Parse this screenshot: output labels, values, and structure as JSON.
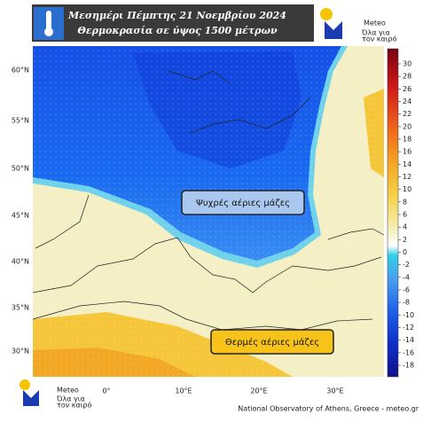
{
  "header": {
    "title": "Μεσημέρι Πέμπτης 21 Νοεμβρίου 2024",
    "subtitle": "Θερμοκρασία σε ύψος 1500 μέτρων"
  },
  "logo": {
    "name": "Meteo",
    "tagline_lines": [
      "Όλα για",
      "τον καιρό"
    ]
  },
  "map": {
    "lat_labels": [
      "60°N",
      "55°N",
      "50°N",
      "45°N",
      "40°N",
      "35°N",
      "30°N"
    ],
    "lon_labels": [
      "0°",
      "10°E",
      "20°E",
      "30°E"
    ],
    "annotations": [
      "Ψυχρές αέριες μάζες",
      "Θερμές αέριες μάζες"
    ]
  },
  "colorbar": {
    "ticks": [
      30,
      28,
      26,
      24,
      22,
      20,
      18,
      16,
      14,
      12,
      10,
      8,
      6,
      4,
      2,
      0,
      -2,
      -4,
      -6,
      -8,
      -10,
      -12,
      -14,
      -16,
      -18
    ]
  },
  "footer": {
    "credit": "National Observatory of Athens, Greece - meteo.gr"
  }
}
